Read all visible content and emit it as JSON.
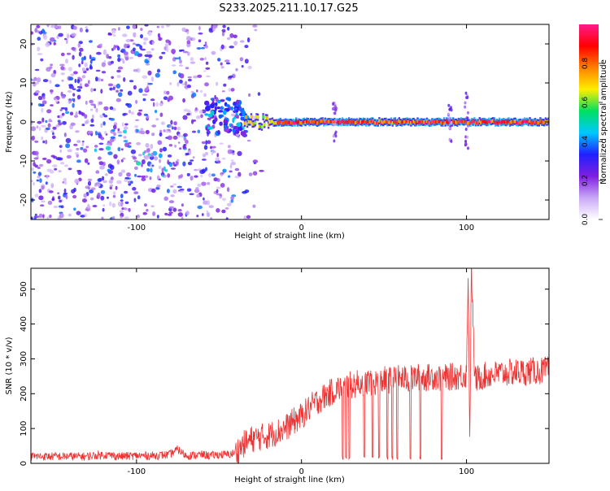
{
  "title": "S233.2025.211.10.17.G25",
  "chart_data": [
    {
      "type": "heatmap",
      "xlabel": "Height of straight line (km)",
      "ylabel": "Frequency (Hz)",
      "xlim": [
        -164,
        150
      ],
      "ylim": [
        -25,
        25
      ],
      "xticks": [
        -100,
        0,
        100
      ],
      "yticks": [
        -20,
        -10,
        0,
        10,
        20
      ],
      "colorbar": {
        "label": "Normalized spectral amplitude",
        "range": [
          0,
          1
        ],
        "ticks": [
          "0.0",
          "0.2",
          "0.4",
          "0.6",
          "0.8"
        ],
        "colormap": [
          "#ffffff",
          "#c9a8f7",
          "#7f1fe0",
          "#2020ff",
          "#00c8ff",
          "#00e060",
          "#ffee00",
          "#ff8000",
          "#ff0000",
          "#ff1a8c"
        ]
      },
      "features": {
        "noise_region_x": [
          -164,
          -48
        ],
        "signal_line_x": [
          -35,
          150
        ],
        "signal_line_freq": 0
      }
    },
    {
      "type": "line",
      "xlabel": "Height of straight line (km)",
      "ylabel": "SNR (10 * v/v)",
      "xlim": [
        -164,
        150
      ],
      "ylim": [
        0,
        560
      ],
      "xticks": [
        -100,
        0,
        100
      ],
      "yticks": [
        0,
        100,
        200,
        300,
        400,
        500
      ],
      "grid": false,
      "color": "#ee3333",
      "series": [
        {
          "x": [
            -164,
            -150,
            -140,
            -130,
            -120,
            -110,
            -100,
            -90,
            -80,
            -75,
            -70,
            -60,
            -55,
            -50,
            -45,
            -40,
            -35,
            -30,
            -25,
            -20,
            -15,
            -10,
            -5,
            0,
            5,
            10,
            15,
            20,
            25,
            30,
            35,
            40,
            45,
            50,
            55,
            60,
            65,
            70,
            75,
            80,
            85,
            90,
            95,
            100,
            101,
            102,
            103,
            105,
            110,
            115,
            120,
            125,
            130,
            135,
            140,
            145,
            150
          ],
          "values": [
            20,
            20,
            20,
            20,
            25,
            20,
            22,
            22,
            25,
            40,
            22,
            25,
            22,
            25,
            25,
            30,
            55,
            70,
            75,
            80,
            90,
            100,
            120,
            135,
            160,
            180,
            195,
            210,
            220,
            225,
            230,
            235,
            232,
            240,
            238,
            245,
            240,
            248,
            245,
            250,
            245,
            248,
            250,
            255,
            560,
            60,
            560,
            240,
            250,
            255,
            258,
            260,
            262,
            262,
            265,
            265,
            268
          ]
        }
      ],
      "dropouts_x": [
        25,
        27,
        29,
        38,
        43,
        47,
        52,
        55,
        58,
        66,
        72,
        85
      ]
    }
  ]
}
